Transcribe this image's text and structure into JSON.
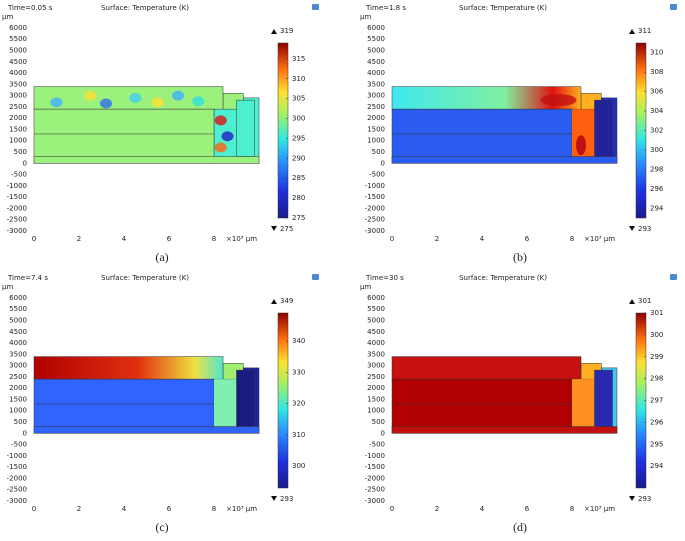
{
  "panels": [
    {
      "time": "Time=0.05 s",
      "title": "Surface: Temperature (K)",
      "y_unit": "µm",
      "yticks": [
        6000,
        5500,
        5000,
        4500,
        4000,
        3500,
        3000,
        2500,
        2000,
        1500,
        1000,
        500,
        0,
        -500,
        -1000,
        -1500,
        -2000,
        -2500,
        -3000
      ],
      "xticks": [
        0,
        2,
        4,
        6,
        8
      ],
      "x_unit": "×10³ µm",
      "colorbar": {
        "max": 319,
        "min": 275,
        "ticks": [
          315,
          310,
          305,
          300,
          295,
          290,
          285,
          280,
          275
        ]
      },
      "caption": "(a)"
    },
    {
      "time": "Time=1.8 s",
      "title": "Surface: Temperature (K)",
      "y_unit": "µm",
      "yticks": [
        6000,
        5500,
        5000,
        4500,
        4000,
        3500,
        3000,
        2500,
        2000,
        1500,
        1000,
        500,
        0,
        -500,
        -1000,
        -1500,
        -2000,
        -2500,
        -3000
      ],
      "xticks": [
        0,
        2,
        4,
        6,
        8
      ],
      "x_unit": "×10³ µm",
      "colorbar": {
        "max": 311,
        "min": 293,
        "ticks": [
          310,
          308,
          306,
          304,
          302,
          300,
          298,
          296,
          294
        ]
      },
      "caption": "(b)"
    },
    {
      "time": "Time=7.4 s",
      "title": "Surface: Temperature (K)",
      "y_unit": "µm",
      "yticks": [
        6000,
        5500,
        5000,
        4500,
        4000,
        3500,
        3000,
        2500,
        2000,
        1500,
        1000,
        500,
        0,
        -500,
        -1000,
        -1500,
        -2000,
        -2500,
        -3000
      ],
      "xticks": [
        0,
        2,
        4,
        6,
        8
      ],
      "x_unit": "×10³ µm",
      "colorbar": {
        "max": 349,
        "min": 293,
        "ticks": [
          340,
          330,
          320,
          310,
          300
        ]
      },
      "caption": "(c)"
    },
    {
      "time": "Time=30 s",
      "title": "Surface: Temperature (K)",
      "y_unit": "µm",
      "yticks": [
        6000,
        5500,
        5000,
        4500,
        4000,
        3500,
        3000,
        2500,
        2000,
        1500,
        1000,
        500,
        0,
        -500,
        -1000,
        -1500,
        -2000,
        -2500,
        -3000
      ],
      "xticks": [
        0,
        2,
        4,
        6,
        8
      ],
      "x_unit": "×10³ µm",
      "colorbar": {
        "max": 301,
        "min": 293,
        "ticks": [
          301,
          300,
          299,
          298,
          297,
          296,
          295,
          294
        ]
      },
      "caption": "(d)"
    }
  ]
}
